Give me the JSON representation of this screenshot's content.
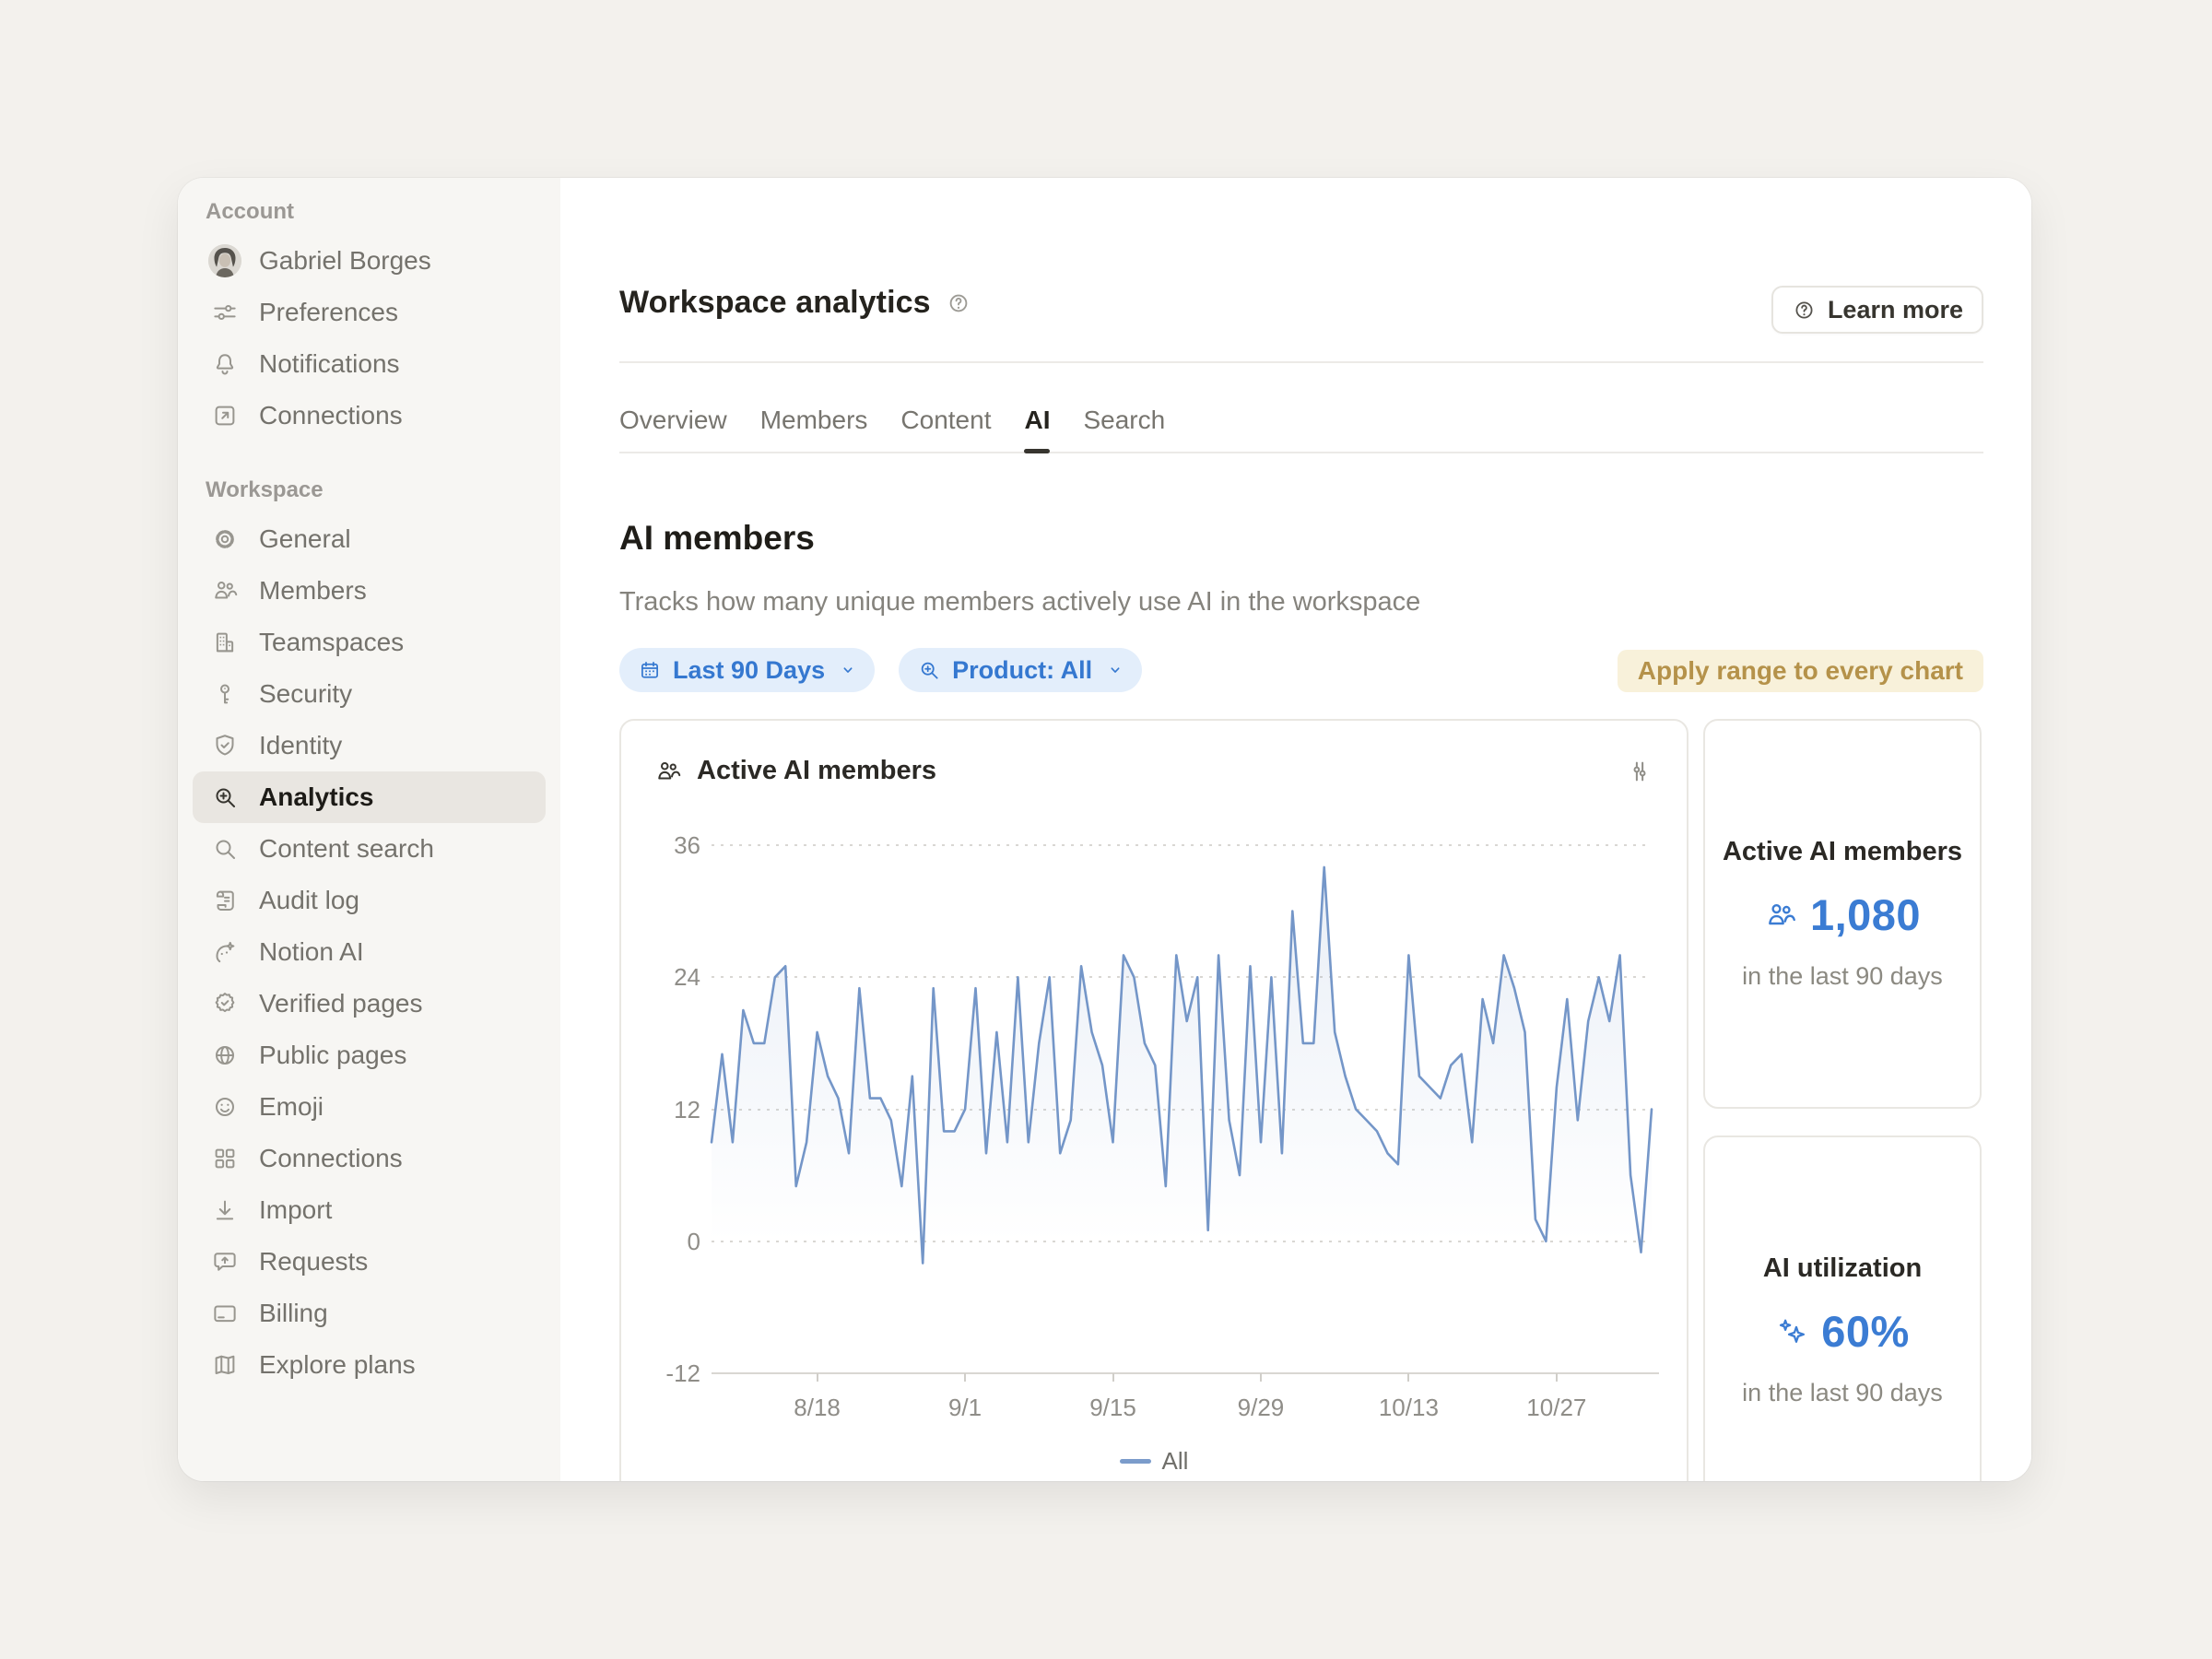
{
  "sidebar": {
    "sections": [
      {
        "label": "Account",
        "items": [
          {
            "slug": "profile",
            "icon": "avatar",
            "label": "Gabriel Borges"
          },
          {
            "slug": "preferences",
            "icon": "sliders",
            "label": "Preferences"
          },
          {
            "slug": "notifications",
            "icon": "bell",
            "label": "Notifications"
          },
          {
            "slug": "connections-account",
            "icon": "arrow-up-right",
            "label": "Connections"
          }
        ]
      },
      {
        "label": "Workspace",
        "items": [
          {
            "slug": "general",
            "icon": "gear",
            "label": "General"
          },
          {
            "slug": "members",
            "icon": "people",
            "label": "Members"
          },
          {
            "slug": "teamspaces",
            "icon": "building",
            "label": "Teamspaces"
          },
          {
            "slug": "security",
            "icon": "key",
            "label": "Security"
          },
          {
            "slug": "identity",
            "icon": "shield-check",
            "label": "Identity"
          },
          {
            "slug": "analytics",
            "icon": "magnifier-plus",
            "label": "Analytics",
            "active": true
          },
          {
            "slug": "content-search",
            "icon": "magnifier",
            "label": "Content search"
          },
          {
            "slug": "audit-log",
            "icon": "scroll",
            "label": "Audit log"
          },
          {
            "slug": "notion-ai",
            "icon": "ai-face",
            "label": "Notion AI"
          },
          {
            "slug": "verified-pages",
            "icon": "badge-check",
            "label": "Verified pages"
          },
          {
            "slug": "public-pages",
            "icon": "globe",
            "label": "Public pages"
          },
          {
            "slug": "emoji",
            "icon": "smiley",
            "label": "Emoji"
          },
          {
            "slug": "connections",
            "icon": "grid",
            "label": "Connections"
          },
          {
            "slug": "import",
            "icon": "download",
            "label": "Import"
          },
          {
            "slug": "requests",
            "icon": "message-up",
            "label": "Requests"
          },
          {
            "slug": "billing",
            "icon": "credit-card",
            "label": "Billing"
          },
          {
            "slug": "explore-plans",
            "icon": "map",
            "label": "Explore plans"
          }
        ]
      }
    ]
  },
  "header": {
    "title": "Workspace analytics",
    "learn_more_label": "Learn more"
  },
  "tabs": {
    "items": [
      "Overview",
      "Members",
      "Content",
      "AI",
      "Search"
    ],
    "active": "AI"
  },
  "section": {
    "heading": "AI members",
    "description": "Tracks how many unique members actively use AI in the workspace"
  },
  "filters": {
    "date_range_label": "Last 90 Days",
    "product_label": "Product: All",
    "apply_label": "Apply range to every chart"
  },
  "chart_data": {
    "type": "line",
    "title": "Active AI members",
    "xlabel": "",
    "ylabel": "",
    "ylim": [
      -12,
      36
    ],
    "y_ticks": [
      36,
      24,
      12,
      0,
      -12
    ],
    "x_tick_labels": [
      "8/18",
      "9/1",
      "9/15",
      "9/29",
      "10/13",
      "10/27"
    ],
    "x_tick_indices": [
      10,
      24,
      38,
      52,
      66,
      80
    ],
    "grid": "dotted-horizontal",
    "legend_position": "bottom",
    "line_color": "#7496c8",
    "series": [
      {
        "name": "All",
        "values": [
          9,
          17,
          9,
          21,
          18,
          18,
          24,
          25,
          5,
          9,
          19,
          15,
          13,
          8,
          23,
          13,
          13,
          11,
          5,
          15,
          -2,
          23,
          10,
          10,
          12,
          23,
          8,
          19,
          9,
          24,
          9,
          18,
          24,
          8,
          11,
          25,
          19,
          16,
          9,
          26,
          24,
          18,
          16,
          5,
          26,
          20,
          24,
          1,
          26,
          11,
          6,
          25,
          9,
          24,
          8,
          30,
          18,
          18,
          34,
          19,
          15,
          12,
          11,
          10,
          8,
          7,
          26,
          15,
          14,
          13,
          16,
          17,
          9,
          22,
          18,
          26,
          23,
          19,
          2,
          0,
          14,
          22,
          11,
          20,
          24,
          20,
          26,
          6,
          -1,
          12
        ]
      }
    ]
  },
  "kpis": [
    {
      "title": "Active AI members",
      "icon": "people",
      "value": "1,080",
      "caption": "in the last 90 days"
    },
    {
      "title": "AI utilization",
      "icon": "sparkles",
      "value": "60%",
      "caption": "in the last 90 days"
    }
  ],
  "colors": {
    "page_bg": "#f3f1ed",
    "sidebar_bg": "#f7f6f3",
    "accent_blue": "#3b7cd3",
    "chip_bg": "#e3eefb",
    "chip_text": "#3578d0",
    "gold_text": "#b5924a",
    "gold_bg": "#f8f1da",
    "line_blue": "#7496c8"
  }
}
